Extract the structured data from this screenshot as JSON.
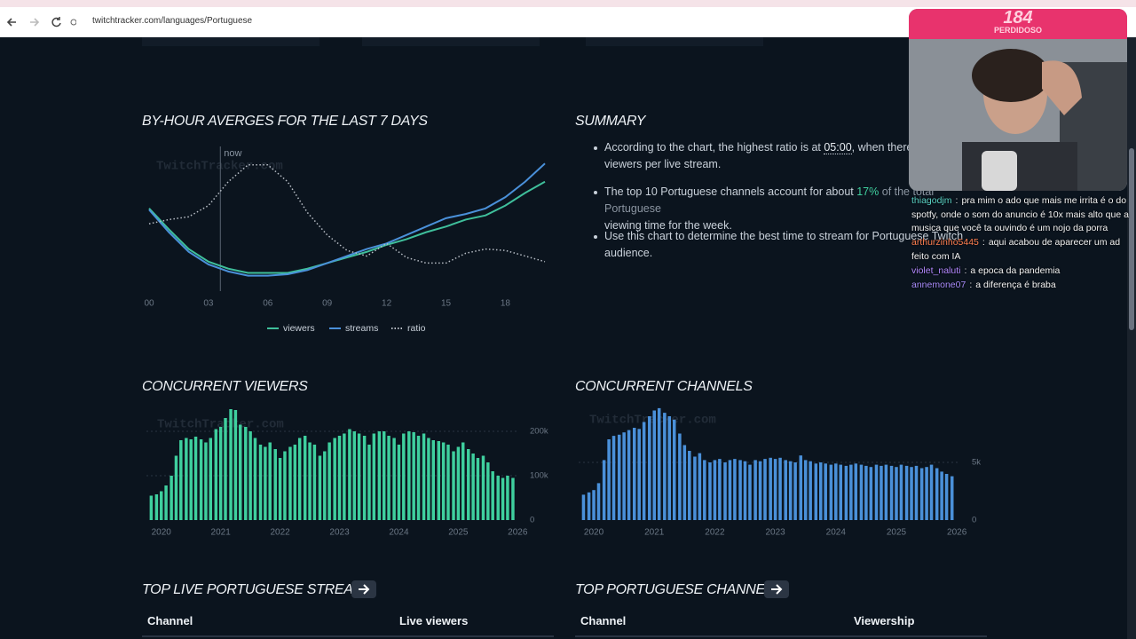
{
  "browser": {
    "url": "twitchtracker.com/languages/Portuguese"
  },
  "chart_data": [
    {
      "type": "line",
      "title": "BY-HOUR AVERGES FOR THE LAST 7 DAYS",
      "watermark": "TwitchTracker.com",
      "x": [
        0,
        1,
        2,
        3,
        4,
        5,
        6,
        7,
        8,
        9,
        10,
        11,
        12,
        13,
        14,
        15,
        16,
        17,
        18,
        19,
        20
      ],
      "xlim": [
        0,
        20
      ],
      "ylim": [
        0,
        100
      ],
      "xticks": [
        {
          "value": 0,
          "label": "00"
        },
        {
          "value": 3,
          "label": "03"
        },
        {
          "value": 6,
          "label": "06"
        },
        {
          "value": 9,
          "label": "09"
        },
        12,
        15,
        18
      ],
      "annotations": [
        {
          "text": "now",
          "x": 3.6
        }
      ],
      "legend": "bottom",
      "series": [
        {
          "name": "viewers",
          "color": "#3fbf9b",
          "linestyle": "solid",
          "values": [
            59,
            44,
            30,
            21,
            16,
            13,
            13,
            13,
            16,
            20,
            24,
            28,
            33,
            37,
            42,
            46,
            51,
            54,
            61,
            70,
            78
          ]
        },
        {
          "name": "streams",
          "color": "#4a90d9",
          "linestyle": "solid",
          "values": [
            58,
            42,
            28,
            19,
            14,
            11,
            11,
            12,
            15,
            20,
            25,
            30,
            34,
            40,
            46,
            52,
            55,
            59,
            67,
            78,
            91
          ]
        },
        {
          "name": "ratio",
          "color": "#b8bec6",
          "linestyle": "dotted",
          "values": [
            48,
            51,
            53,
            61,
            78,
            90,
            90,
            78,
            56,
            40,
            29,
            25,
            34,
            24,
            20,
            20,
            27,
            30,
            29,
            25,
            21
          ]
        }
      ]
    },
    {
      "type": "bar",
      "title": "CONCURRENT VIEWERS",
      "watermark": "TwitchTracker.com",
      "color": "#3fcf9e",
      "grid": true,
      "x": [
        2019.83,
        2019.92,
        2020,
        2020.08,
        2020.17,
        2020.25,
        2020.33,
        2020.42,
        2020.5,
        2020.58,
        2020.67,
        2020.75,
        2020.83,
        2020.92,
        2021,
        2021.08,
        2021.17,
        2021.25,
        2021.33,
        2021.42,
        2021.5,
        2021.58,
        2021.67,
        2021.75,
        2021.83,
        2021.92,
        2022,
        2022.08,
        2022.17,
        2022.25,
        2022.33,
        2022.42,
        2022.5,
        2022.58,
        2022.67,
        2022.75,
        2022.83,
        2022.92,
        2023,
        2023.08,
        2023.17,
        2023.25,
        2023.33,
        2023.42,
        2023.5,
        2023.58,
        2023.67,
        2023.75,
        2023.83,
        2023.92,
        2024,
        2024.08,
        2024.17,
        2024.25,
        2024.33,
        2024.42,
        2024.5,
        2024.58,
        2024.67,
        2024.75,
        2024.83,
        2024.92,
        2025,
        2025.08,
        2025.17,
        2025.25,
        2025.33,
        2025.42,
        2025.5,
        2025.58,
        2025.67,
        2025.75,
        2025.83,
        2025.92
      ],
      "values": [
        55000,
        58000,
        65000,
        78000,
        100000,
        145000,
        180000,
        185000,
        182000,
        188000,
        182000,
        175000,
        185000,
        205000,
        210000,
        230000,
        250000,
        248000,
        215000,
        210000,
        200000,
        185000,
        170000,
        165000,
        175000,
        160000,
        140000,
        155000,
        165000,
        170000,
        185000,
        190000,
        175000,
        170000,
        145000,
        155000,
        175000,
        185000,
        190000,
        195000,
        205000,
        200000,
        195000,
        190000,
        170000,
        195000,
        200000,
        200000,
        190000,
        185000,
        170000,
        195000,
        200000,
        198000,
        190000,
        195000,
        185000,
        180000,
        178000,
        175000,
        170000,
        155000,
        165000,
        175000,
        160000,
        150000,
        140000,
        145000,
        130000,
        110000,
        100000,
        95000,
        100000,
        95000
      ],
      "xlim": [
        2019.75,
        2026.1
      ],
      "xticks": [
        2020,
        2021,
        2022,
        2023,
        2024,
        2025,
        2026
      ],
      "ylim": [
        0,
        250000
      ],
      "yticks": [
        0,
        {
          "value": 100000,
          "label": "100k"
        },
        {
          "value": 200000,
          "label": "200k"
        }
      ]
    },
    {
      "type": "bar",
      "title": "CONCURRENT CHANNELS",
      "watermark": "TwitchTracker.com",
      "color": "#4a90d9",
      "grid": true,
      "x": [
        2019.83,
        2019.92,
        2020,
        2020.08,
        2020.17,
        2020.25,
        2020.33,
        2020.42,
        2020.5,
        2020.58,
        2020.67,
        2020.75,
        2020.83,
        2020.92,
        2021,
        2021.08,
        2021.17,
        2021.25,
        2021.33,
        2021.42,
        2021.5,
        2021.58,
        2021.67,
        2021.75,
        2021.83,
        2021.92,
        2022,
        2022.08,
        2022.17,
        2022.25,
        2022.33,
        2022.42,
        2022.5,
        2022.58,
        2022.67,
        2022.75,
        2022.83,
        2022.92,
        2023,
        2023.08,
        2023.17,
        2023.25,
        2023.33,
        2023.42,
        2023.5,
        2023.58,
        2023.67,
        2023.75,
        2023.83,
        2023.92,
        2024,
        2024.08,
        2024.17,
        2024.25,
        2024.33,
        2024.42,
        2024.5,
        2024.58,
        2024.67,
        2024.75,
        2024.83,
        2024.92,
        2025,
        2025.08,
        2025.17,
        2025.25,
        2025.33,
        2025.42,
        2025.5,
        2025.58,
        2025.67,
        2025.75,
        2025.83,
        2025.92
      ],
      "values": [
        2200,
        2400,
        2600,
        3200,
        5200,
        7000,
        7300,
        7400,
        7600,
        7800,
        8000,
        7900,
        8500,
        9000,
        9500,
        9700,
        9300,
        9000,
        8700,
        7500,
        6500,
        6000,
        5500,
        5800,
        5200,
        5000,
        5200,
        5300,
        5000,
        5200,
        5300,
        5200,
        5100,
        4800,
        5200,
        5100,
        5300,
        5400,
        5300,
        5400,
        5200,
        5100,
        5000,
        5600,
        5200,
        5100,
        4900,
        5000,
        4900,
        4800,
        4900,
        4800,
        4700,
        4800,
        4900,
        4800,
        4700,
        4600,
        4800,
        4700,
        4800,
        4700,
        4600,
        4800,
        4700,
        4600,
        4700,
        4500,
        4600,
        4800,
        4500,
        4200,
        4000,
        3800
      ],
      "xlim": [
        2019.75,
        2026.1
      ],
      "xticks": [
        2020,
        2021,
        2022,
        2023,
        2024,
        2025,
        2026
      ],
      "ylim": [
        0,
        10000
      ],
      "yticks": [
        0,
        {
          "value": 5000,
          "label": "5k"
        }
      ]
    }
  ],
  "summary": {
    "title": "SUMMARY",
    "bullets": [
      {
        "before": "According to the chart, the highest ratio is at ",
        "highlight": "05:00",
        "after": ", when there",
        "line2": "viewers per live stream."
      },
      {
        "before": "The top 10 Portuguese channels account for about ",
        "highlight": "17%",
        "after": " of the total Portuguese",
        "line2": "viewing time for the week."
      },
      {
        "before": "Use this chart to determine the best time to stream for Portuguese Twitch",
        "line2": "audience."
      }
    ]
  },
  "tables": [
    {
      "title": "TOP LIVE PORTUGUESE STREAMS",
      "columns": [
        "Channel",
        "Live viewers"
      ]
    },
    {
      "title": "TOP PORTUGUESE CHANNELS",
      "columns": [
        "Channel",
        "Viewership"
      ]
    }
  ],
  "overlay": {
    "count": "184",
    "name": "PERDIDOSO",
    "separator": ":",
    "chat": [
      {
        "user": "thiagodjm",
        "color": "#5ad1c4",
        "message": "pra mim o ado que mais me irrita é o do spotfy, onde o som do anuncio é 10x mais alto que a musica que você ta ouvindo é um nojo da porra"
      },
      {
        "user": "arthurzinho5445",
        "color": "#ff7f50",
        "message": "aqui acabou de aparecer um ad feito com IA"
      },
      {
        "user": "violet_naluti",
        "color": "#b388ff",
        "message": "a epoca da pandemia"
      },
      {
        "user": "annemone07",
        "color": "#a78bfa",
        "message": "a diferença é braba"
      }
    ]
  }
}
